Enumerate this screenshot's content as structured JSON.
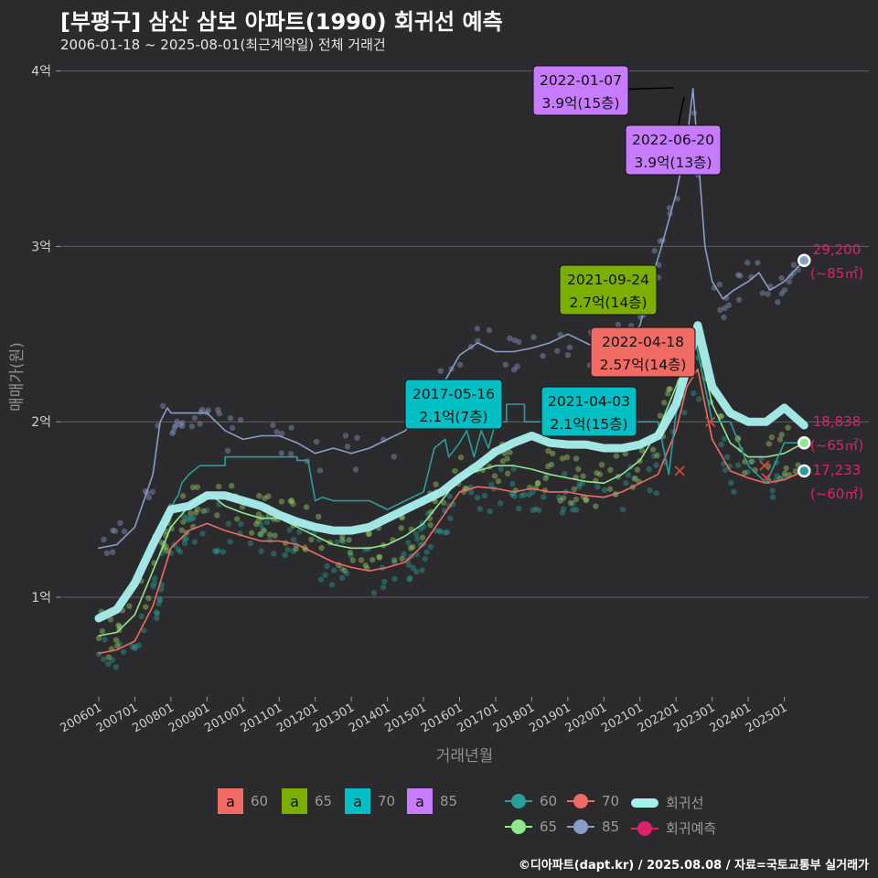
{
  "title": "[부평구] 삼산 삼보 아파트(1990) 회귀선 예측",
  "subtitle": "2006-01-18 ~ 2025-08-01(최근계약일) 전체 거래건",
  "caption": "©디아파트(dapt.kr) / 2025.08.08 / 자료=국토교통부 실거래가",
  "colors": {
    "background": "#2b2b2d",
    "s60": "#ef6b64",
    "s65": "#7cae00",
    "s70": "#00bfc4",
    "s85": "#c77cff",
    "line60": "#ef6b64",
    "line65": "#8fe88f",
    "line70": "#2a9d9a",
    "line85": "#8a9cc8",
    "regression": "#a8f0ee",
    "forecast": "#e0206a"
  },
  "legend": {
    "box_letter": "a",
    "box_items": [
      {
        "label": "60",
        "color": "#ef6b64"
      },
      {
        "label": "65",
        "color": "#7cae00"
      },
      {
        "label": "70",
        "color": "#00bfc4"
      },
      {
        "label": "85",
        "color": "#c77cff"
      }
    ],
    "line_items": [
      {
        "label": "60",
        "color": "#2a9d9a"
      },
      {
        "label": "70",
        "color": "#ef6b64"
      },
      {
        "label": "회귀선",
        "color": "#a8f0ee"
      },
      {
        "label": "65",
        "color": "#8fe88f"
      },
      {
        "label": "85",
        "color": "#8a9cc8"
      },
      {
        "label": "회귀예측",
        "color": "#e0206a"
      }
    ]
  },
  "chart_data": {
    "type": "line",
    "xlabel": "거래년월",
    "ylabel": "매매가(원)",
    "x_range": [
      2006.0,
      2025.6
    ],
    "ylim": [
      0.6,
      4.05
    ],
    "y_ticks": [
      1,
      2,
      3,
      4
    ],
    "y_tick_labels": [
      "1억",
      "2억",
      "3억",
      "4억"
    ],
    "x_tick_labels": [
      "200601",
      "200701",
      "200801",
      "200901",
      "201001",
      "201101",
      "201201",
      "201301",
      "201401",
      "201501",
      "201601",
      "201701",
      "201801",
      "201901",
      "202001",
      "202101",
      "202201",
      "202301",
      "202401",
      "202501"
    ],
    "grid": true,
    "series": [
      {
        "name": "60",
        "key": "line60",
        "x": [
          2006.0,
          2006.5,
          2007.0,
          2007.5,
          2008.0,
          2008.5,
          2009.0,
          2009.5,
          2010.0,
          2010.5,
          2011.0,
          2011.5,
          2012.0,
          2012.5,
          2013.0,
          2013.5,
          2014.0,
          2014.5,
          2015.0,
          2015.5,
          2016.0,
          2016.5,
          2017.0,
          2017.5,
          2018.0,
          2018.5,
          2019.0,
          2019.5,
          2020.0,
          2020.5,
          2021.0,
          2021.5,
          2022.0,
          2022.3,
          2022.6,
          2023.0,
          2023.5,
          2024.0,
          2024.5,
          2025.0,
          2025.55
        ],
        "values": [
          0.68,
          0.7,
          0.75,
          0.95,
          1.28,
          1.38,
          1.42,
          1.38,
          1.35,
          1.32,
          1.32,
          1.3,
          1.25,
          1.2,
          1.17,
          1.15,
          1.17,
          1.2,
          1.3,
          1.45,
          1.6,
          1.63,
          1.62,
          1.6,
          1.62,
          1.6,
          1.6,
          1.58,
          1.57,
          1.6,
          1.65,
          1.7,
          1.95,
          2.2,
          2.3,
          1.9,
          1.72,
          1.68,
          1.65,
          1.67,
          1.72
        ]
      },
      {
        "name": "65",
        "key": "line65",
        "x": [
          2006.0,
          2006.5,
          2007.0,
          2007.5,
          2008.0,
          2008.5,
          2009.0,
          2009.5,
          2010.0,
          2010.5,
          2011.0,
          2011.5,
          2012.0,
          2012.5,
          2013.0,
          2013.5,
          2014.0,
          2014.5,
          2015.0,
          2015.5,
          2016.0,
          2016.5,
          2017.0,
          2017.5,
          2018.0,
          2018.5,
          2019.0,
          2019.5,
          2020.0,
          2020.5,
          2021.0,
          2021.5,
          2022.0,
          2022.3,
          2022.6,
          2023.0,
          2023.5,
          2024.0,
          2024.5,
          2025.0,
          2025.55
        ],
        "values": [
          0.78,
          0.8,
          0.9,
          1.15,
          1.4,
          1.52,
          1.6,
          1.52,
          1.48,
          1.45,
          1.45,
          1.4,
          1.35,
          1.3,
          1.28,
          1.28,
          1.3,
          1.35,
          1.42,
          1.55,
          1.68,
          1.72,
          1.75,
          1.75,
          1.73,
          1.7,
          1.68,
          1.66,
          1.65,
          1.7,
          1.78,
          1.95,
          2.2,
          2.35,
          2.45,
          2.1,
          1.88,
          1.8,
          1.8,
          1.82,
          1.88
        ]
      },
      {
        "name": "70",
        "key": "line70",
        "x": [
          2007.5,
          2007.9,
          2008.0,
          2008.1,
          2008.2,
          2008.3,
          2008.5,
          2008.8,
          2009.0,
          2009.5,
          2009.5,
          2010.0,
          2010.5,
          2011.0,
          2011.5,
          2011.5,
          2011.8,
          2012.0,
          2012.2,
          2012.5,
          2013.0,
          2013.5,
          2014.0,
          2014.5,
          2015.0,
          2015.3,
          2015.6,
          2015.7,
          2016.0,
          2016.2,
          2016.4,
          2016.6,
          2016.8,
          2017.0,
          2017.3,
          2017.3,
          2017.8,
          2017.8,
          2018.5,
          2019.0,
          2019.5,
          2020.0,
          2020.5,
          2021.0,
          2021.2,
          2021.5,
          2021.8,
          2022.0,
          2022.3,
          2022.5,
          2022.6,
          2023.0,
          2023.5,
          2024.0,
          2024.5,
          2025.0,
          2025.55
        ],
        "values": [
          1.35,
          1.45,
          1.5,
          1.55,
          1.58,
          1.65,
          1.7,
          1.75,
          1.75,
          1.75,
          1.8,
          1.8,
          1.8,
          1.8,
          1.8,
          1.78,
          1.78,
          1.55,
          1.57,
          1.55,
          1.55,
          1.55,
          1.5,
          1.55,
          1.6,
          1.85,
          1.9,
          1.8,
          1.88,
          1.95,
          1.8,
          1.95,
          1.85,
          2.0,
          2.0,
          2.1,
          2.1,
          2.0,
          2.0,
          2.0,
          2.0,
          2.0,
          2.0,
          2.0,
          2.0,
          2.0,
          1.7,
          2.05,
          2.3,
          2.5,
          2.4,
          2.0,
          2.0,
          1.75,
          1.65,
          1.88,
          1.88
        ]
      },
      {
        "name": "85",
        "key": "line85",
        "x": [
          2006.0,
          2006.5,
          2007.0,
          2007.5,
          2007.7,
          2007.9,
          2008.0,
          2008.5,
          2009.0,
          2009.5,
          2010.0,
          2010.5,
          2011.0,
          2011.5,
          2012.0,
          2012.5,
          2013.0,
          2013.5,
          2014.0,
          2014.5,
          2015.0,
          2015.5,
          2016.0,
          2016.5,
          2017.0,
          2017.5,
          2018.0,
          2018.5,
          2019.0,
          2019.5,
          2020.0,
          2020.5,
          2021.0,
          2021.3,
          2021.6,
          2022.0,
          2022.3,
          2022.47,
          2022.6,
          2022.8,
          2023.0,
          2023.3,
          2023.6,
          2024.0,
          2024.3,
          2024.6,
          2025.0,
          2025.55
        ],
        "values": [
          1.28,
          1.3,
          1.4,
          1.7,
          2.0,
          2.08,
          2.05,
          2.05,
          2.05,
          1.95,
          1.9,
          1.92,
          1.92,
          1.88,
          1.82,
          1.85,
          1.82,
          1.85,
          1.9,
          1.95,
          2.1,
          2.2,
          2.38,
          2.45,
          2.4,
          2.4,
          2.42,
          2.45,
          2.5,
          2.45,
          2.4,
          2.45,
          2.55,
          2.8,
          3.0,
          3.3,
          3.6,
          3.9,
          3.55,
          3.0,
          2.8,
          2.7,
          2.75,
          2.8,
          2.85,
          2.75,
          2.8,
          2.92
        ]
      },
      {
        "name": "회귀선",
        "key": "regression",
        "x": [
          2006.0,
          2006.5,
          2007.0,
          2007.5,
          2008.0,
          2008.5,
          2009.0,
          2009.5,
          2010.0,
          2010.5,
          2011.0,
          2011.5,
          2012.0,
          2012.5,
          2013.0,
          2013.5,
          2014.0,
          2014.5,
          2015.0,
          2015.5,
          2016.0,
          2016.5,
          2017.0,
          2017.5,
          2018.0,
          2018.5,
          2019.0,
          2019.5,
          2020.0,
          2020.5,
          2021.0,
          2021.5,
          2022.0,
          2022.3,
          2022.6,
          2023.0,
          2023.5,
          2024.0,
          2024.5,
          2025.0,
          2025.55
        ],
        "values": [
          0.88,
          0.93,
          1.08,
          1.3,
          1.5,
          1.52,
          1.58,
          1.58,
          1.55,
          1.52,
          1.47,
          1.43,
          1.4,
          1.38,
          1.38,
          1.4,
          1.45,
          1.5,
          1.55,
          1.6,
          1.68,
          1.75,
          1.83,
          1.88,
          1.92,
          1.88,
          1.87,
          1.87,
          1.85,
          1.85,
          1.87,
          1.92,
          2.1,
          2.3,
          2.55,
          2.2,
          2.05,
          2.0,
          2.0,
          2.08,
          1.98
        ]
      }
    ],
    "end_labels": [
      {
        "price": "29,200",
        "area": "(~85㎡)",
        "x": 2025.55,
        "y": 2.92,
        "color": "#8a9cc8"
      },
      {
        "price": "18,838",
        "area": "(~65㎡)",
        "x": 2025.55,
        "y": 1.88,
        "color": "#8fe88f"
      },
      {
        "price": "17,233",
        "area": "(~60㎡)",
        "x": 2025.55,
        "y": 1.72,
        "color": "#2a9d9a"
      }
    ],
    "annotations": [
      {
        "date": "2022-01-07",
        "text": "3.9억(15층)",
        "color": "#c77cff",
        "x": 2022.0,
        "y": 3.9
      },
      {
        "date": "2022-06-20",
        "text": "3.9억(13층)",
        "color": "#c77cff",
        "x": 2022.47,
        "y": 3.9
      },
      {
        "date": "2021-09-24",
        "text": "2.7억(14층)",
        "color": "#7cae00",
        "x": 2021.73,
        "y": 2.7
      },
      {
        "date": "2022-04-18",
        "text": "2.57억(14층)",
        "color": "#ef6b64",
        "x": 2022.3,
        "y": 2.57
      },
      {
        "date": "2017-05-16",
        "text": "2.1억(7층)",
        "color": "#00bfc4",
        "x": 2017.37,
        "y": 2.1
      },
      {
        "date": "2021-04-03",
        "text": "2.1억(15층)",
        "color": "#00bfc4",
        "x": 2021.25,
        "y": 2.1
      }
    ]
  }
}
